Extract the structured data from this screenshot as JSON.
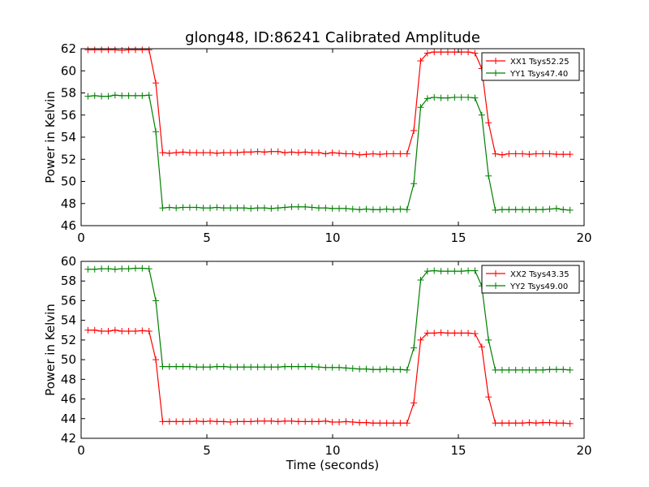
{
  "chart_data": [
    {
      "type": "line",
      "title": "glong48, ID:86241 Calibrated Amplitude",
      "xlabel": "",
      "ylabel": "Power in Kelvin",
      "xlim": [
        0,
        20
      ],
      "ylim": [
        46,
        62
      ],
      "x_ticks": [
        0,
        5,
        10,
        15,
        20
      ],
      "y_ticks": [
        46,
        48,
        50,
        52,
        54,
        56,
        58,
        60,
        62
      ],
      "legend_position": "top-right",
      "x": [
        0.27,
        0.54,
        0.81,
        1.08,
        1.35,
        1.62,
        1.89,
        2.16,
        2.43,
        2.7,
        2.97,
        3.24,
        3.51,
        3.78,
        4.05,
        4.32,
        4.59,
        4.86,
        5.13,
        5.4,
        5.67,
        5.94,
        6.21,
        6.48,
        6.75,
        7.02,
        7.29,
        7.56,
        7.83,
        8.1,
        8.37,
        8.64,
        8.91,
        9.18,
        9.45,
        9.72,
        9.99,
        10.26,
        10.53,
        10.8,
        11.07,
        11.34,
        11.61,
        11.88,
        12.15,
        12.42,
        12.69,
        12.96,
        13.23,
        13.5,
        13.77,
        14.04,
        14.31,
        14.58,
        14.85,
        15.12,
        15.39,
        15.66,
        15.93,
        16.2,
        16.47,
        16.74,
        17.01,
        17.28,
        17.55,
        17.82,
        18.09,
        18.36,
        18.63,
        18.9,
        19.17,
        19.44
      ],
      "series": [
        {
          "name": "XX1 Tsys52.25",
          "color": "#ff0000",
          "values": [
            61.9,
            61.9,
            61.9,
            61.9,
            61.9,
            61.85,
            61.9,
            61.9,
            61.9,
            61.9,
            58.9,
            52.6,
            52.55,
            52.6,
            52.65,
            52.6,
            52.6,
            52.6,
            52.6,
            52.55,
            52.6,
            52.6,
            52.6,
            52.65,
            52.65,
            52.7,
            52.65,
            52.7,
            52.7,
            52.6,
            52.65,
            52.6,
            52.65,
            52.6,
            52.6,
            52.5,
            52.6,
            52.55,
            52.5,
            52.5,
            52.4,
            52.45,
            52.5,
            52.45,
            52.5,
            52.5,
            52.5,
            52.5,
            54.6,
            60.9,
            61.6,
            61.7,
            61.7,
            61.7,
            61.7,
            61.7,
            61.7,
            61.6,
            60.2,
            55.3,
            52.5,
            52.4,
            52.5,
            52.5,
            52.5,
            52.45,
            52.5,
            52.5,
            52.5,
            52.45,
            52.45,
            52.45
          ]
        },
        {
          "name": "YY1 Tsys47.40",
          "color": "#008000",
          "values": [
            57.7,
            57.75,
            57.7,
            57.7,
            57.8,
            57.75,
            57.75,
            57.75,
            57.75,
            57.8,
            54.5,
            47.6,
            47.65,
            47.6,
            47.65,
            47.65,
            47.65,
            47.6,
            47.6,
            47.65,
            47.6,
            47.6,
            47.6,
            47.6,
            47.55,
            47.6,
            47.6,
            47.55,
            47.6,
            47.65,
            47.7,
            47.7,
            47.7,
            47.65,
            47.6,
            47.6,
            47.55,
            47.55,
            47.55,
            47.5,
            47.45,
            47.5,
            47.45,
            47.45,
            47.5,
            47.45,
            47.5,
            47.45,
            49.8,
            56.7,
            57.5,
            57.6,
            57.55,
            57.55,
            57.6,
            57.6,
            57.6,
            57.55,
            56.0,
            50.5,
            47.4,
            47.45,
            47.45,
            47.45,
            47.45,
            47.45,
            47.45,
            47.45,
            47.5,
            47.55,
            47.45,
            47.4
          ]
        }
      ]
    },
    {
      "type": "line",
      "title": "",
      "xlabel": "Time (seconds)",
      "ylabel": "Power in Kelvin",
      "xlim": [
        0,
        20
      ],
      "ylim": [
        42,
        60
      ],
      "x_ticks": [
        0,
        5,
        10,
        15,
        20
      ],
      "y_ticks": [
        42,
        44,
        46,
        48,
        50,
        52,
        54,
        56,
        58,
        60
      ],
      "legend_position": "top-right",
      "x": [
        0.27,
        0.54,
        0.81,
        1.08,
        1.35,
        1.62,
        1.89,
        2.16,
        2.43,
        2.7,
        2.97,
        3.24,
        3.51,
        3.78,
        4.05,
        4.32,
        4.59,
        4.86,
        5.13,
        5.4,
        5.67,
        5.94,
        6.21,
        6.48,
        6.75,
        7.02,
        7.29,
        7.56,
        7.83,
        8.1,
        8.37,
        8.64,
        8.91,
        9.18,
        9.45,
        9.72,
        9.99,
        10.26,
        10.53,
        10.8,
        11.07,
        11.34,
        11.61,
        11.88,
        12.15,
        12.42,
        12.69,
        12.96,
        13.23,
        13.5,
        13.77,
        14.04,
        14.31,
        14.58,
        14.85,
        15.12,
        15.39,
        15.66,
        15.93,
        16.2,
        16.47,
        16.74,
        17.01,
        17.28,
        17.55,
        17.82,
        18.09,
        18.36,
        18.63,
        18.9,
        19.17,
        19.44
      ],
      "series": [
        {
          "name": "XX2 Tsys43.35",
          "color": "#ff0000",
          "values": [
            53.0,
            53.0,
            52.9,
            52.9,
            53.0,
            52.9,
            52.9,
            52.9,
            52.95,
            52.9,
            50.0,
            43.7,
            43.7,
            43.7,
            43.7,
            43.7,
            43.75,
            43.7,
            43.75,
            43.7,
            43.7,
            43.65,
            43.7,
            43.7,
            43.7,
            43.75,
            43.75,
            43.75,
            43.7,
            43.75,
            43.75,
            43.7,
            43.7,
            43.7,
            43.7,
            43.75,
            43.65,
            43.65,
            43.7,
            43.65,
            43.6,
            43.6,
            43.55,
            43.55,
            43.55,
            43.55,
            43.55,
            43.55,
            45.6,
            52.0,
            52.7,
            52.7,
            52.75,
            52.7,
            52.7,
            52.7,
            52.7,
            52.65,
            51.3,
            46.2,
            43.55,
            43.55,
            43.55,
            43.55,
            43.55,
            43.6,
            43.55,
            43.6,
            43.6,
            43.55,
            43.55,
            43.5
          ]
        },
        {
          "name": "YY2 Tsys49.00",
          "color": "#008000",
          "values": [
            59.2,
            59.2,
            59.25,
            59.25,
            59.2,
            59.25,
            59.25,
            59.3,
            59.3,
            59.25,
            56.0,
            49.3,
            49.3,
            49.3,
            49.3,
            49.3,
            49.25,
            49.25,
            49.25,
            49.3,
            49.3,
            49.25,
            49.25,
            49.25,
            49.25,
            49.25,
            49.25,
            49.25,
            49.25,
            49.3,
            49.3,
            49.3,
            49.3,
            49.3,
            49.25,
            49.2,
            49.2,
            49.2,
            49.15,
            49.1,
            49.05,
            49.05,
            49.0,
            49.0,
            49.05,
            49.0,
            49.0,
            48.95,
            51.2,
            58.1,
            59.0,
            59.05,
            59.0,
            59.0,
            59.0,
            59.0,
            59.05,
            59.05,
            57.5,
            52.0,
            48.95,
            48.95,
            48.95,
            48.95,
            48.95,
            48.95,
            48.95,
            48.95,
            49.0,
            49.0,
            49.0,
            48.95
          ]
        }
      ]
    }
  ]
}
